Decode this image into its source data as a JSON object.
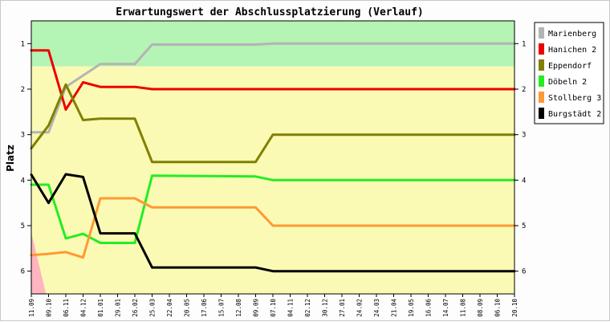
{
  "chart_data": {
    "type": "line",
    "title": "Erwartungswert der Abschlussplatzierung (Verlauf)",
    "ylabel": "Platz",
    "xlabel": "",
    "ylim": [
      0.5,
      6.5
    ],
    "yticks": [
      1,
      2,
      3,
      4,
      5,
      6
    ],
    "grid": false,
    "legend_position": "right",
    "categories": [
      "11.09",
      "09.10",
      "06.11",
      "04.12",
      "01.01",
      "29.01",
      "26.02",
      "25.03",
      "22.04",
      "20.05",
      "17.06",
      "15.07",
      "12.08",
      "09.09",
      "07.10",
      "04.11",
      "02.12",
      "30.12",
      "27.01",
      "24.02",
      "24.03",
      "21.04",
      "19.05",
      "16.06",
      "14.07",
      "11.08",
      "08.09",
      "06.10",
      "20.10"
    ],
    "bands": [
      {
        "from": 0.5,
        "to": 1.5,
        "color": "#b4f4b4"
      },
      {
        "from": 1.5,
        "to": 6.5,
        "color": "#fafab4"
      }
    ],
    "corner_color": "#ffb4c0",
    "series": [
      {
        "name": "Marienberg",
        "color": "#b4b4b4",
        "points": [
          [
            0,
            2.95
          ],
          [
            1,
            2.95
          ],
          [
            2,
            1.95
          ],
          [
            3,
            1.7
          ],
          [
            4,
            1.45
          ],
          [
            6,
            1.45
          ],
          [
            7,
            1.02
          ],
          [
            13,
            1.02
          ],
          [
            14,
            1.0
          ],
          [
            28,
            1.0
          ]
        ]
      },
      {
        "name": "Hanichen 2",
        "color": "#ee0000",
        "points": [
          [
            0,
            1.15
          ],
          [
            1,
            1.15
          ],
          [
            2,
            2.45
          ],
          [
            3,
            1.85
          ],
          [
            4,
            1.95
          ],
          [
            6,
            1.95
          ],
          [
            7,
            2.0
          ],
          [
            28,
            2.0
          ]
        ]
      },
      {
        "name": "Eppendorf",
        "color": "#808000",
        "points": [
          [
            0,
            3.3
          ],
          [
            1,
            2.8
          ],
          [
            2,
            1.9
          ],
          [
            3,
            2.68
          ],
          [
            4,
            2.65
          ],
          [
            6,
            2.65
          ],
          [
            7,
            3.6
          ],
          [
            13,
            3.6
          ],
          [
            14,
            3.0
          ],
          [
            28,
            3.0
          ]
        ]
      },
      {
        "name": "Döbeln 2",
        "color": "#22ee22",
        "points": [
          [
            0,
            4.1
          ],
          [
            1,
            4.1
          ],
          [
            2,
            5.28
          ],
          [
            3,
            5.18
          ],
          [
            4,
            5.38
          ],
          [
            6,
            5.38
          ],
          [
            7,
            3.9
          ],
          [
            13,
            3.92
          ],
          [
            14,
            4.0
          ],
          [
            28,
            4.0
          ]
        ]
      },
      {
        "name": "Stollberg 3",
        "color": "#ff9933",
        "points": [
          [
            0,
            5.65
          ],
          [
            1,
            5.62
          ],
          [
            2,
            5.58
          ],
          [
            3,
            5.7
          ],
          [
            4,
            4.4
          ],
          [
            6,
            4.4
          ],
          [
            7,
            4.6
          ],
          [
            13,
            4.6
          ],
          [
            14,
            5.0
          ],
          [
            28,
            5.0
          ]
        ]
      },
      {
        "name": "Burgstädt 2",
        "color": "#000000",
        "points": [
          [
            0,
            3.88
          ],
          [
            1,
            4.5
          ],
          [
            2,
            3.87
          ],
          [
            3,
            3.93
          ],
          [
            4,
            5.17
          ],
          [
            6,
            5.17
          ],
          [
            7,
            5.92
          ],
          [
            13,
            5.92
          ],
          [
            14,
            6.0
          ],
          [
            28,
            6.0
          ]
        ]
      }
    ]
  }
}
